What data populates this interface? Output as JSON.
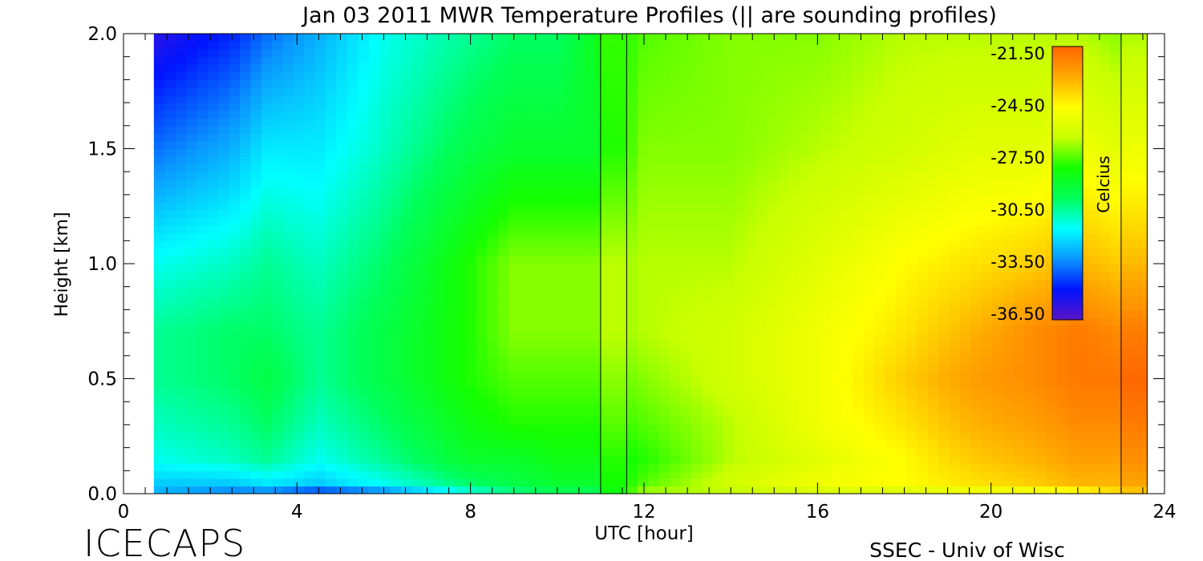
{
  "chart_data": {
    "type": "heatmap",
    "title": "Jan 03 2011 MWR Temperature Profiles (|| are sounding profiles)",
    "xlabel": "UTC [hour]",
    "ylabel": "Height [km]",
    "xlim": [
      0,
      24
    ],
    "ylim": [
      0,
      2
    ],
    "x_ticks": [
      "0",
      "4",
      "8",
      "12",
      "16",
      "20",
      "24"
    ],
    "y_ticks": [
      "0.0",
      "0.5",
      "1.0",
      "1.5",
      "2.0"
    ],
    "data_x_range": [
      0.7,
      23.0
    ],
    "colorbar": {
      "label": "Celcius",
      "ticks": [
        "-21.50",
        "-24.50",
        "-27.50",
        "-30.50",
        "-33.50",
        "-36.50"
      ],
      "min": -37.5,
      "max": -21.5,
      "colors": [
        "#5a14c8",
        "#0014ff",
        "#0a96ff",
        "#00ffff",
        "#00ff5a",
        "#14ff00",
        "#c8ff00",
        "#ffff00",
        "#ffaa00",
        "#ff6400"
      ]
    },
    "sounding_times_hr": [
      11.0,
      11.6,
      23.0,
      23.6
    ],
    "height_levels_km": [
      0.0,
      0.05,
      0.15,
      0.3,
      0.5,
      0.7,
      1.0,
      1.5,
      2.0
    ],
    "time_points_hr": [
      0.7,
      2.5,
      3.3,
      4.5,
      6,
      8,
      9,
      10,
      11,
      12,
      14,
      16,
      18,
      19.5,
      21,
      22,
      23
    ],
    "temperature_c": [
      [
        -33.5,
        -34.5,
        -34.5,
        -35.5,
        -34.5,
        -32.0,
        -31.0,
        -30.5,
        -30.5,
        -27.0,
        -27.0,
        -26.5,
        -26.5,
        -26.0,
        -26.0,
        -25.5,
        -24.5
      ],
      [
        -33.0,
        -33.0,
        -32.5,
        -33.0,
        -32.0,
        -30.5,
        -30.0,
        -29.5,
        -29.5,
        -28.0,
        -26.5,
        -25.5,
        -25.0,
        -24.5,
        -24.0,
        -23.5,
        -23.5
      ],
      [
        -32.0,
        -31.5,
        -31.0,
        -32.0,
        -31.0,
        -29.5,
        -29.5,
        -29.0,
        -29.0,
        -28.5,
        -27.0,
        -26.0,
        -25.0,
        -24.0,
        -23.5,
        -23.0,
        -23.0
      ],
      [
        -31.5,
        -31.0,
        -30.5,
        -31.5,
        -30.5,
        -29.0,
        -28.5,
        -28.5,
        -28.5,
        -28.0,
        -27.0,
        -25.5,
        -24.5,
        -23.5,
        -23.0,
        -22.5,
        -22.5
      ],
      [
        -31.0,
        -30.5,
        -30.0,
        -31.0,
        -30.0,
        -28.5,
        -28.0,
        -28.0,
        -28.0,
        -27.5,
        -26.5,
        -25.5,
        -24.0,
        -23.0,
        -22.5,
        -22.0,
        -22.0
      ],
      [
        -31.0,
        -30.5,
        -30.5,
        -31.0,
        -30.0,
        -28.5,
        -27.5,
        -27.5,
        -27.5,
        -27.0,
        -26.5,
        -25.5,
        -24.5,
        -23.5,
        -22.5,
        -22.0,
        -22.5
      ],
      [
        -32.0,
        -31.5,
        -31.0,
        -31.5,
        -30.5,
        -28.5,
        -27.5,
        -27.5,
        -27.5,
        -27.0,
        -27.0,
        -26.0,
        -25.0,
        -24.5,
        -24.0,
        -23.5,
        -24.0
      ],
      [
        -34.5,
        -33.5,
        -32.5,
        -32.5,
        -31.5,
        -30.0,
        -29.5,
        -29.5,
        -29.5,
        -27.5,
        -27.5,
        -27.0,
        -26.5,
        -26.0,
        -26.0,
        -25.5,
        -26.0
      ],
      [
        -36.5,
        -35.5,
        -34.5,
        -33.5,
        -32.0,
        -31.0,
        -30.5,
        -30.5,
        -29.0,
        -28.0,
        -27.5,
        -27.5,
        -27.0,
        -27.0,
        -27.0,
        -27.0,
        -27.5
      ]
    ]
  },
  "footer": {
    "left_text": "ICECAPS",
    "right_text": "SSEC - Univ of Wisc"
  }
}
